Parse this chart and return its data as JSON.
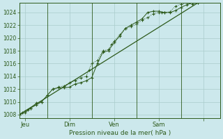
{
  "bg_color": "#cce8ec",
  "grid_color": "#aacccc",
  "line_color": "#2d5a1b",
  "xlabel": "Pression niveau de la mer( hPa )",
  "ylim": [
    1007.5,
    1025.5
  ],
  "yticks": [
    1008,
    1010,
    1012,
    1014,
    1016,
    1018,
    1020,
    1022,
    1024
  ],
  "xlim": [
    0,
    216
  ],
  "day_ticks_x": [
    6,
    54,
    102,
    150,
    198
  ],
  "day_labels": [
    "Jeu",
    "Dim",
    "Ven",
    "Sam",
    ""
  ],
  "vline_x": [
    30,
    78,
    126,
    174
  ],
  "series1": [
    [
      0,
      1008.0
    ],
    [
      3,
      1008.3
    ],
    [
      6,
      1008.5
    ],
    [
      9,
      1008.8
    ],
    [
      12,
      1009.0
    ],
    [
      18,
      1009.8
    ],
    [
      24,
      1010.0
    ],
    [
      30,
      1011.0
    ],
    [
      36,
      1012.0
    ],
    [
      42,
      1012.3
    ],
    [
      48,
      1012.5
    ],
    [
      54,
      1013.0
    ],
    [
      60,
      1013.3
    ],
    [
      66,
      1013.8
    ],
    [
      72,
      1014.0
    ],
    [
      75,
      1015.0
    ],
    [
      78,
      1016.0
    ],
    [
      84,
      1016.5
    ],
    [
      90,
      1018.0
    ],
    [
      96,
      1018.2
    ],
    [
      99,
      1019.0
    ],
    [
      102,
      1019.5
    ],
    [
      108,
      1020.5
    ],
    [
      114,
      1021.5
    ],
    [
      120,
      1021.8
    ],
    [
      126,
      1022.2
    ],
    [
      132,
      1022.8
    ],
    [
      138,
      1023.2
    ],
    [
      144,
      1023.8
    ],
    [
      150,
      1024.0
    ],
    [
      153,
      1024.0
    ],
    [
      156,
      1024.0
    ],
    [
      162,
      1024.1
    ],
    [
      168,
      1025.0
    ],
    [
      174,
      1025.3
    ],
    [
      180,
      1025.5
    ],
    [
      186,
      1025.3
    ],
    [
      192,
      1025.5
    ]
  ],
  "series2": [
    [
      0,
      1008.0
    ],
    [
      6,
      1008.3
    ],
    [
      12,
      1009.0
    ],
    [
      18,
      1009.5
    ],
    [
      24,
      1010.0
    ],
    [
      30,
      1011.0
    ],
    [
      36,
      1012.0
    ],
    [
      42,
      1012.2
    ],
    [
      48,
      1012.2
    ],
    [
      54,
      1012.3
    ],
    [
      60,
      1012.8
    ],
    [
      66,
      1013.0
    ],
    [
      72,
      1013.3
    ],
    [
      78,
      1013.8
    ],
    [
      84,
      1016.0
    ],
    [
      90,
      1017.8
    ],
    [
      96,
      1018.0
    ],
    [
      102,
      1019.3
    ],
    [
      108,
      1020.3
    ],
    [
      114,
      1021.5
    ],
    [
      120,
      1022.0
    ],
    [
      126,
      1022.5
    ],
    [
      132,
      1023.0
    ],
    [
      138,
      1024.0
    ],
    [
      144,
      1024.2
    ],
    [
      150,
      1024.2
    ],
    [
      156,
      1024.0
    ],
    [
      162,
      1024.0
    ],
    [
      168,
      1024.3
    ],
    [
      174,
      1024.8
    ],
    [
      180,
      1025.2
    ],
    [
      186,
      1025.5
    ],
    [
      192,
      1025.5
    ]
  ],
  "series3": [
    [
      0,
      1008.0
    ],
    [
      192,
      1025.5
    ]
  ]
}
